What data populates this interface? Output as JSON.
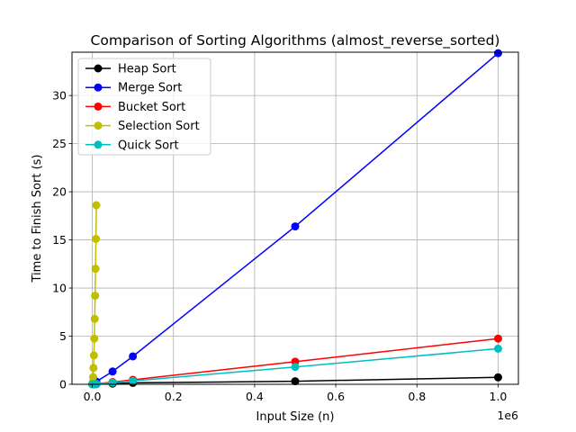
{
  "chart_data": {
    "type": "line",
    "title": "Comparison of Sorting Algorithms (almost_reverse_sorted)",
    "xlabel": "Input Size (n)",
    "ylabel": "Time to Finish Sort (s)",
    "x_offset_label": "1e6",
    "xlim": [
      -0.05,
      1.05
    ],
    "ylim": [
      0,
      34.5
    ],
    "x_ticks": [
      0.0,
      0.2,
      0.4,
      0.6,
      0.8,
      1.0
    ],
    "x_tick_labels": [
      "0.0",
      "0.2",
      "0.4",
      "0.6",
      "0.8",
      "1.0"
    ],
    "y_ticks": [
      0,
      5,
      10,
      15,
      20,
      25,
      30
    ],
    "y_tick_labels": [
      "0",
      "5",
      "10",
      "15",
      "20",
      "25",
      "30"
    ],
    "grid": true,
    "legend_position": "top-left",
    "series": [
      {
        "name": "Heap Sort",
        "color": "#000000",
        "x": [
          0.0001,
          0.001,
          0.005,
          0.01,
          0.05,
          0.1,
          0.5,
          1.0
        ],
        "y": [
          0.0,
          0.0,
          0.01,
          0.02,
          0.07,
          0.15,
          0.32,
          0.72
        ]
      },
      {
        "name": "Merge Sort",
        "color": "#0000ff",
        "x": [
          0.0001,
          0.001,
          0.005,
          0.01,
          0.05,
          0.1,
          0.5,
          1.0
        ],
        "y": [
          0.0,
          0.02,
          0.13,
          0.28,
          1.33,
          2.9,
          16.4,
          34.4
        ]
      },
      {
        "name": "Bucket Sort",
        "color": "#ff0000",
        "x": [
          0.0001,
          0.001,
          0.005,
          0.01,
          0.05,
          0.1,
          0.5,
          1.0
        ],
        "y": [
          0.0,
          0.01,
          0.03,
          0.05,
          0.23,
          0.47,
          2.35,
          4.75
        ]
      },
      {
        "name": "Selection Sort",
        "color": "#bfbf00",
        "x": [
          0.0,
          0.001,
          0.002,
          0.003,
          0.004,
          0.005,
          0.006,
          0.007,
          0.008,
          0.009,
          0.01
        ],
        "y": [
          0.0,
          0.2,
          0.75,
          1.7,
          3.0,
          4.75,
          6.8,
          9.2,
          12.0,
          15.1,
          18.6
        ]
      },
      {
        "name": "Quick Sort",
        "color": "#00bfbf",
        "x": [
          0.0001,
          0.001,
          0.005,
          0.01,
          0.05,
          0.1,
          0.5,
          1.0
        ],
        "y": [
          0.0,
          0.01,
          0.02,
          0.04,
          0.17,
          0.35,
          1.8,
          3.7
        ]
      }
    ]
  }
}
